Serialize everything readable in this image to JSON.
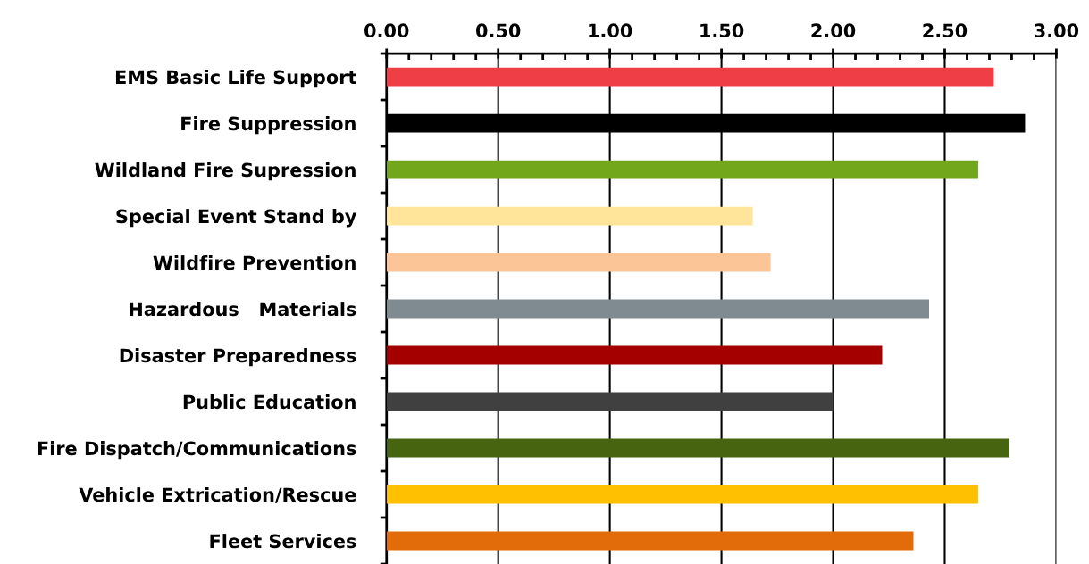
{
  "chart_data": {
    "type": "bar",
    "orientation": "horizontal",
    "categories": [
      "EMS Basic Life Support",
      "Fire Suppression",
      "Wildland Fire Supression",
      "Special Event Stand by",
      "Wildfire Prevention",
      "Hazardous   Materials",
      "Disaster Preparedness",
      "Public Education",
      "Fire Dispatch/Communications",
      "Vehicle Extrication/Rescue",
      "Fleet Services"
    ],
    "values": [
      2.72,
      2.86,
      2.65,
      1.64,
      1.72,
      2.43,
      2.22,
      2.0,
      2.79,
      2.65,
      2.36
    ],
    "colors": [
      "#ef3e45",
      "#000000",
      "#72a61b",
      "#fee599",
      "#fbc597",
      "#808b91",
      "#a50000",
      "#404040",
      "#476511",
      "#fec000",
      "#e36c0a"
    ],
    "xlim": [
      0,
      3
    ],
    "xticks": [
      {
        "value": 0,
        "label": "0.00"
      },
      {
        "value": 0.5,
        "label": "0.50"
      },
      {
        "value": 1,
        "label": "1.00"
      },
      {
        "value": 1.5,
        "label": "1.50"
      },
      {
        "value": 2,
        "label": "2.00"
      },
      {
        "value": 2.5,
        "label": "2.50"
      },
      {
        "value": 3,
        "label": "3.00"
      }
    ],
    "grid": "x"
  }
}
